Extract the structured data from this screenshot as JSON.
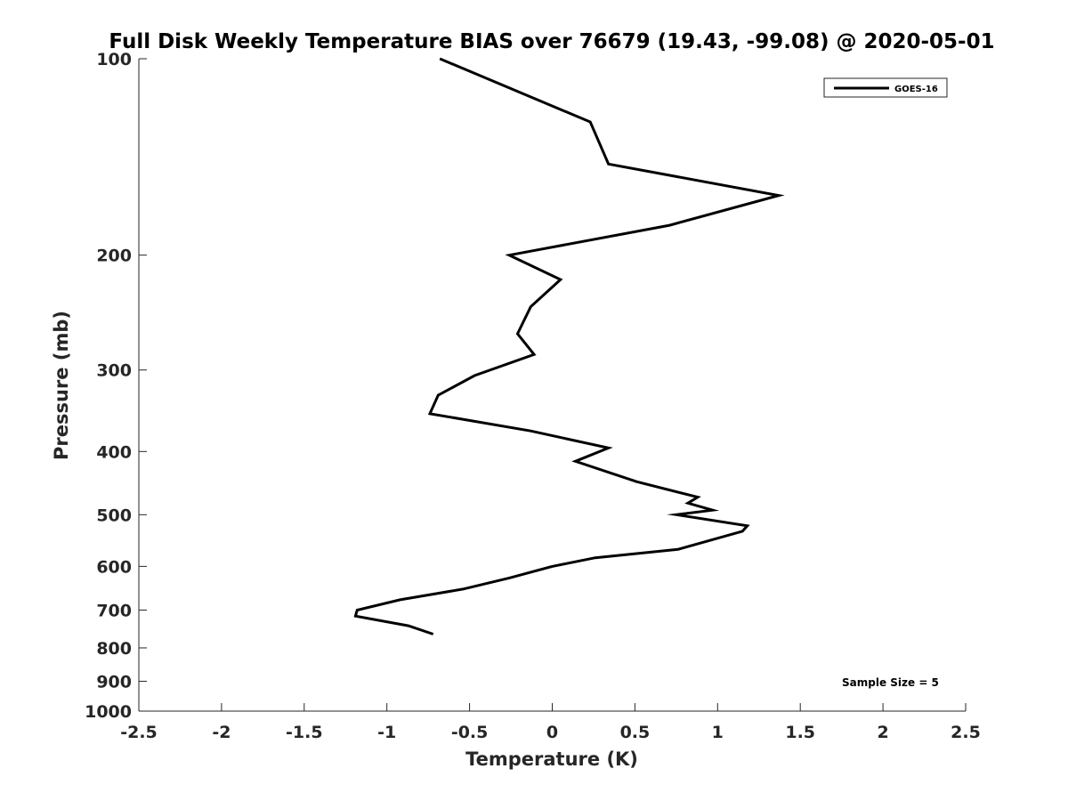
{
  "chart_data": {
    "type": "line",
    "title": "Full Disk Weekly Temperature BIAS over 76679 (19.43, -99.08) @ 2020-05-01",
    "xlabel": "Temperature (K)",
    "ylabel": "Pressure (mb)",
    "xlim": [
      -2.5,
      2.5
    ],
    "ylim": [
      100,
      1000
    ],
    "y_scale": "log",
    "y_reversed": true,
    "x_ticks": [
      -2.5,
      -2,
      -1.5,
      -1,
      -0.5,
      0,
      0.5,
      1,
      1.5,
      2,
      2.5
    ],
    "x_tick_labels": [
      "-2.5",
      "-2",
      "-1.5",
      "-1",
      "-0.5",
      "0",
      "0.5",
      "1",
      "1.5",
      "2",
      "2.5"
    ],
    "y_ticks": [
      100,
      200,
      300,
      400,
      500,
      600,
      700,
      800,
      900,
      1000
    ],
    "y_tick_labels": [
      "100",
      "200",
      "300",
      "400",
      "500",
      "600",
      "700",
      "800",
      "900",
      "1000"
    ],
    "grid": false,
    "legend_position": "top-right",
    "series": [
      {
        "name": "GOES-16",
        "color": "#000000",
        "x": [
          -0.68,
          0.23,
          0.34,
          1.37,
          0.71,
          -0.26,
          0.05,
          -0.13,
          -0.21,
          -0.11,
          -0.47,
          -0.69,
          -0.74,
          -0.13,
          0.34,
          0.14,
          0.51,
          0.88,
          0.82,
          0.97,
          0.75,
          1.18,
          1.15,
          0.76,
          0.26,
          0.0,
          -0.26,
          -0.54,
          -0.92,
          -1.18,
          -1.19,
          -0.87,
          -0.72
        ],
        "y": [
          100,
          125,
          145,
          162,
          180,
          200,
          218,
          240,
          264,
          284,
          306,
          328,
          350,
          372,
          395,
          414,
          445,
          470,
          480,
          492,
          500,
          520,
          530,
          565,
          582,
          600,
          625,
          650,
          675,
          700,
          715,
          740,
          762
        ]
      }
    ],
    "annotations": [
      {
        "text": "Sample Size = 5",
        "position": "bottom-right"
      }
    ]
  }
}
